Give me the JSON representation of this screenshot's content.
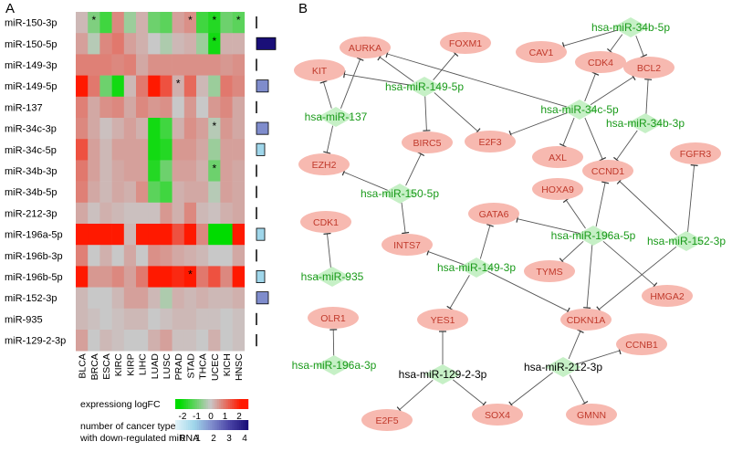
{
  "panel_a": {
    "label": "A",
    "mirnas": [
      "miR-150-3p",
      "miR-150-5p",
      "miR-149-3p",
      "miR-149-5p",
      "miR-137",
      "miR-34c-3p",
      "miR-34c-5p",
      "miR-34b-3p",
      "miR-34b-5p",
      "miR-212-3p",
      "miR-196a-5p",
      "miR-196b-3p",
      "miR-196b-5p",
      "miR-152-3p",
      "miR-935",
      "miR-129-2-3p"
    ],
    "cancers": [
      "BLCA",
      "BRCA",
      "ESCA",
      "KIRC",
      "KIRP",
      "LIHC",
      "LUAD",
      "LUSC",
      "PRAD",
      "STAD",
      "THCA",
      "UCEC",
      "KICH",
      "HNSC"
    ],
    "logfc": [
      [
        0.2,
        -0.8,
        -1.5,
        0.8,
        -0.5,
        0.3,
        -1.0,
        -1.2,
        0.5,
        0.7,
        -1.5,
        -1.8,
        -1.0,
        -1.2
      ],
      [
        0.5,
        -0.2,
        0.8,
        1.0,
        0.5,
        0.3,
        0.0,
        -0.3,
        0.2,
        0.3,
        -0.5,
        -2.0,
        0.3,
        0.3
      ],
      [
        0.9,
        0.9,
        0.9,
        0.8,
        0.9,
        0.4,
        0.7,
        0.7,
        0.7,
        0.7,
        0.7,
        0.7,
        0.6,
        0.7
      ],
      [
        2.5,
        1.0,
        -1.0,
        -2.0,
        0.2,
        1.0,
        2.5,
        1.5,
        0.3,
        1.2,
        0.2,
        -0.5,
        1.0,
        0.8
      ],
      [
        0.9,
        0.4,
        0.7,
        0.8,
        0.4,
        0.8,
        0.6,
        0.7,
        0.0,
        0.6,
        0.0,
        0.6,
        0.8,
        0.4
      ],
      [
        0.8,
        0.4,
        0.1,
        0.3,
        0.5,
        0.3,
        -2.0,
        -1.5,
        0.3,
        0.7,
        0.5,
        -0.2,
        0.6,
        0.4
      ],
      [
        1.5,
        0.5,
        0.2,
        0.5,
        0.5,
        0.5,
        -2.0,
        -1.8,
        0.6,
        0.6,
        0.4,
        -0.5,
        0.5,
        0.5
      ],
      [
        1.0,
        0.5,
        0.2,
        0.4,
        0.5,
        0.5,
        -1.8,
        -1.0,
        0.5,
        0.5,
        0.3,
        -1.0,
        0.5,
        0.4
      ],
      [
        0.9,
        0.4,
        0.2,
        0.4,
        0.3,
        0.7,
        -1.2,
        -1.5,
        0.3,
        0.4,
        0.4,
        -0.2,
        0.5,
        0.4
      ],
      [
        0.4,
        0.1,
        0.3,
        0.2,
        0.1,
        0.1,
        0.1,
        0.6,
        0.3,
        0.8,
        0.2,
        0.1,
        0.3,
        0.4
      ],
      [
        3.0,
        3.0,
        3.0,
        2.5,
        0.2,
        3.0,
        3.0,
        3.0,
        1.5,
        2.5,
        0.8,
        -2.5,
        -2.5,
        3.0
      ],
      [
        0.9,
        0.0,
        0.3,
        0.0,
        0.4,
        0.0,
        0.7,
        0.6,
        0.4,
        0.3,
        0.2,
        0.0,
        0.0,
        0.4
      ],
      [
        3.0,
        0.6,
        0.6,
        0.8,
        0.5,
        1.0,
        2.5,
        2.5,
        2.0,
        3.0,
        1.0,
        1.5,
        0.8,
        2.8
      ],
      [
        0.2,
        0.0,
        0.0,
        0.2,
        0.5,
        0.5,
        0.2,
        -0.3,
        0.3,
        0.2,
        0.3,
        0.2,
        0.2,
        0.3
      ],
      [
        0.2,
        0.1,
        0.0,
        0.1,
        0.2,
        0.2,
        0.0,
        0.1,
        0.2,
        0.2,
        0.1,
        0.1,
        0.0,
        0.1
      ],
      [
        0.5,
        0.0,
        0.2,
        0.1,
        0.0,
        0.0,
        0.3,
        0.5,
        0.1,
        0.1,
        0.0,
        0.3,
        0.0,
        0.1
      ]
    ],
    "stars": [
      [
        0,
        1
      ],
      [
        0,
        9
      ],
      [
        0,
        11
      ],
      [
        0,
        13
      ],
      [
        1,
        11
      ],
      [
        3,
        8
      ],
      [
        5,
        11
      ],
      [
        7,
        11
      ],
      [
        12,
        9
      ]
    ],
    "downregulated_counts": [
      0,
      4,
      0,
      2,
      0,
      2,
      1,
      0,
      0,
      0,
      1,
      0,
      1,
      2,
      0,
      0
    ],
    "legend_logfc": {
      "title": "expressiong logFC",
      "ticks": [
        "-2",
        "-1",
        "0",
        "1",
        "2"
      ],
      "colors": [
        "#00dd00",
        "#7fe27f",
        "#c8c8c8",
        "#f39a8a",
        "#ff1a00"
      ]
    },
    "legend_count": {
      "title_line1": "number of cancer types",
      "title_line2": "with down-regulated miRNA",
      "ticks": [
        "0",
        "1",
        "2",
        "3",
        "4"
      ],
      "colors": [
        "#e0f2f8",
        "#9fd6ea",
        "#7f8ccc",
        "#4a44a6",
        "#1a0f78"
      ]
    }
  },
  "panel_b": {
    "label": "B",
    "mirna_nodes": [
      {
        "id": "m34b5p",
        "label": "hsa-miR-34b-5p",
        "color": "green"
      },
      {
        "id": "m1495p",
        "label": "hsa-miR-149-5p",
        "color": "green"
      },
      {
        "id": "m34c5p",
        "label": "hsa-miR-34c-5p",
        "color": "green"
      },
      {
        "id": "m137",
        "label": "hsa-miR-137",
        "color": "green"
      },
      {
        "id": "m34b3p",
        "label": "hsa-miR-34b-3p",
        "color": "green"
      },
      {
        "id": "m1505p",
        "label": "hsa-miR-150-5p",
        "color": "green"
      },
      {
        "id": "m196a5p",
        "label": "hsa-miR-196a-5p",
        "color": "green"
      },
      {
        "id": "m1523p",
        "label": "hsa-miR-152-3p",
        "color": "green"
      },
      {
        "id": "m935",
        "label": "hsa-miR-935",
        "color": "green"
      },
      {
        "id": "m1493p",
        "label": "hsa-miR-149-3p",
        "color": "green"
      },
      {
        "id": "m196a3p",
        "label": "hsa-miR-196a-3p",
        "color": "green"
      },
      {
        "id": "m12923p",
        "label": "hsa-miR-129-2-3p",
        "color": "black"
      },
      {
        "id": "m2123p",
        "label": "hsa-miR-212-3p",
        "color": "black"
      }
    ],
    "gene_nodes": [
      {
        "id": "AURKA",
        "label": "AURKA"
      },
      {
        "id": "FOXM1",
        "label": "FOXM1"
      },
      {
        "id": "CAV1",
        "label": "CAV1"
      },
      {
        "id": "CDK4",
        "label": "CDK4"
      },
      {
        "id": "BCL2",
        "label": "BCL2"
      },
      {
        "id": "KIT",
        "label": "KIT"
      },
      {
        "id": "BIRC5",
        "label": "BIRC5"
      },
      {
        "id": "E2F3",
        "label": "E2F3"
      },
      {
        "id": "AXL",
        "label": "AXL"
      },
      {
        "id": "EZH2",
        "label": "EZH2"
      },
      {
        "id": "CCND1",
        "label": "CCND1"
      },
      {
        "id": "FGFR3",
        "label": "FGFR3"
      },
      {
        "id": "HOXA9",
        "label": "HOXA9"
      },
      {
        "id": "GATA6",
        "label": "GATA6"
      },
      {
        "id": "CDK1",
        "label": "CDK1"
      },
      {
        "id": "INTS7",
        "label": "INTS7"
      },
      {
        "id": "TYMS",
        "label": "TYMS"
      },
      {
        "id": "HMGA2",
        "label": "HMGA2"
      },
      {
        "id": "OLR1",
        "label": "OLR1"
      },
      {
        "id": "YES1",
        "label": "YES1"
      },
      {
        "id": "CDKN1A",
        "label": "CDKN1A"
      },
      {
        "id": "CCNB1",
        "label": "CCNB1"
      },
      {
        "id": "E2F5",
        "label": "E2F5"
      },
      {
        "id": "SOX4",
        "label": "SOX4"
      },
      {
        "id": "GMNN",
        "label": "GMNN"
      }
    ],
    "edges": [
      [
        "m34b5p",
        "CAV1"
      ],
      [
        "m34b5p",
        "CDK4"
      ],
      [
        "m34b5p",
        "BCL2"
      ],
      [
        "m1495p",
        "AURKA"
      ],
      [
        "m1495p",
        "FOXM1"
      ],
      [
        "m1495p",
        "BIRC5"
      ],
      [
        "m1495p",
        "E2F3"
      ],
      [
        "m1495p",
        "KIT"
      ],
      [
        "m34c5p",
        "CDK4"
      ],
      [
        "m34c5p",
        "BCL2"
      ],
      [
        "m34c5p",
        "E2F3"
      ],
      [
        "m34c5p",
        "AXL"
      ],
      [
        "m34c5p",
        "CCND1"
      ],
      [
        "m34c5p",
        "AURKA"
      ],
      [
        "m137",
        "AURKA"
      ],
      [
        "m137",
        "KIT"
      ],
      [
        "m137",
        "EZH2"
      ],
      [
        "m34b3p",
        "BCL2"
      ],
      [
        "m34b3p",
        "CCND1"
      ],
      [
        "m1505p",
        "EZH2"
      ],
      [
        "m1505p",
        "BIRC5"
      ],
      [
        "m1505p",
        "INTS7"
      ],
      [
        "m196a5p",
        "GATA6"
      ],
      [
        "m196a5p",
        "HOXA9"
      ],
      [
        "m196a5p",
        "CCND1"
      ],
      [
        "m196a5p",
        "TYMS"
      ],
      [
        "m196a5p",
        "HMGA2"
      ],
      [
        "m196a5p",
        "CDKN1A"
      ],
      [
        "m1523p",
        "FGFR3"
      ],
      [
        "m1523p",
        "CCND1"
      ],
      [
        "m1523p",
        "CDKN1A"
      ],
      [
        "m935",
        "CDK1"
      ],
      [
        "m1493p",
        "GATA6"
      ],
      [
        "m1493p",
        "INTS7"
      ],
      [
        "m1493p",
        "YES1"
      ],
      [
        "m1493p",
        "CDKN1A"
      ],
      [
        "m196a3p",
        "OLR1"
      ],
      [
        "m12923p",
        "YES1"
      ],
      [
        "m12923p",
        "E2F5"
      ],
      [
        "m12923p",
        "SOX4"
      ],
      [
        "m2123p",
        "CDKN1A"
      ],
      [
        "m2123p",
        "CCNB1"
      ],
      [
        "m2123p",
        "SOX4"
      ],
      [
        "m2123p",
        "GMNN"
      ]
    ]
  }
}
